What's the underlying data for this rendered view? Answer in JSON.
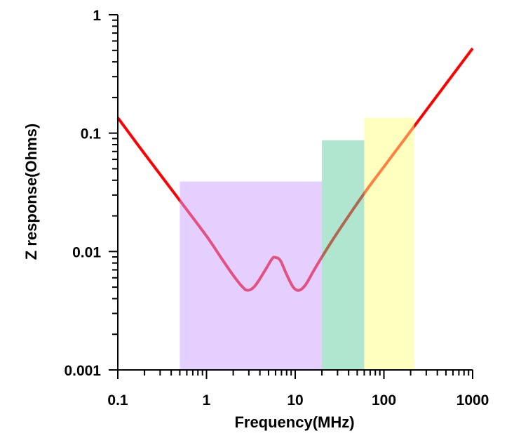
{
  "chart_data": {
    "type": "line",
    "title": "",
    "xlabel": "Frequency(MHz)",
    "ylabel": "Z response(Ohms)",
    "xscale": "log",
    "yscale": "log",
    "xlim": [
      0.1,
      1000
    ],
    "ylim": [
      0.001,
      1
    ],
    "grid": false,
    "x_ticks": [
      {
        "v": 0.1,
        "label": "0.1"
      },
      {
        "v": 1,
        "label": "1"
      },
      {
        "v": 10,
        "label": "10"
      },
      {
        "v": 100,
        "label": "100"
      },
      {
        "v": 1000,
        "label": "1000"
      }
    ],
    "y_ticks": [
      {
        "v": 0.001,
        "label": "0.001"
      },
      {
        "v": 0.01,
        "label": "0.01"
      },
      {
        "v": 0.1,
        "label": "0.1"
      },
      {
        "v": 1,
        "label": "1"
      }
    ],
    "series": [
      {
        "name": "Z response",
        "color": "#FF0000",
        "points": [
          [
            0.1,
            0.135
          ],
          [
            0.2,
            0.067
          ],
          [
            0.5,
            0.027
          ],
          [
            1,
            0.0135
          ],
          [
            1.5,
            0.0086
          ],
          [
            2,
            0.0063
          ],
          [
            2.5,
            0.0051
          ],
          [
            2.9,
            0.0047
          ],
          [
            3.5,
            0.0051
          ],
          [
            4.5,
            0.0068
          ],
          [
            5.5,
            0.0087
          ],
          [
            6,
            0.0089
          ],
          [
            6.8,
            0.0084
          ],
          [
            8,
            0.0064
          ],
          [
            9.5,
            0.005
          ],
          [
            11,
            0.0047
          ],
          [
            13,
            0.0052
          ],
          [
            16,
            0.0068
          ],
          [
            20,
            0.009
          ],
          [
            30,
            0.0145
          ],
          [
            60,
            0.031
          ],
          [
            100,
            0.052
          ],
          [
            1000,
            0.52
          ]
        ]
      }
    ],
    "regions": [
      {
        "name": "band-1",
        "x": [
          0.5,
          20
        ],
        "y_top": 0.039,
        "color": "#C9A0FF"
      },
      {
        "name": "band-2",
        "x": [
          20,
          60
        ],
        "y_top": 0.087,
        "color": "#61CD9F"
      },
      {
        "name": "band-3",
        "x": [
          60,
          220
        ],
        "y_top": 0.135,
        "color": "#FFFF80"
      }
    ]
  }
}
